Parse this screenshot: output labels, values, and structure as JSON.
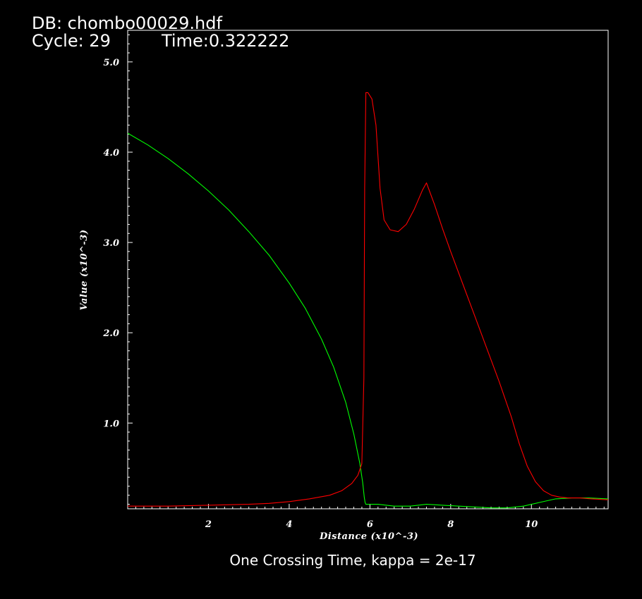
{
  "header": {
    "db_label": "DB: chombo00029.hdf",
    "cycle_label": "Cycle: 29",
    "time_label": "Time:0.322222"
  },
  "caption": "One Crossing Time, kappa = 2e-17",
  "chart_data": {
    "type": "line",
    "xlabel": "Distance (x10^-3)",
    "ylabel": "Value (x10^-3)",
    "xlim": [
      0,
      11.9
    ],
    "ylim": [
      0.05,
      5.35
    ],
    "x_ticks": [
      2,
      4,
      6,
      8,
      10
    ],
    "x_tick_labels": [
      "2",
      "4",
      "6",
      "8",
      "10"
    ],
    "y_ticks": [
      1.0,
      2.0,
      3.0,
      4.0,
      5.0
    ],
    "y_tick_labels": [
      "1.0",
      "2.0",
      "3.0",
      "4.0",
      "5.0"
    ],
    "grid": false,
    "legend": "none",
    "series": [
      {
        "color": "#00ff00",
        "x": [
          0,
          0.5,
          1,
          1.5,
          2,
          2.5,
          3,
          3.5,
          4,
          4.4,
          4.8,
          5.1,
          5.4,
          5.6,
          5.75,
          5.82,
          5.86,
          5.88,
          5.9,
          6.2,
          6.6,
          7,
          7.4,
          7.8,
          8.2,
          8.6,
          9,
          9.4,
          9.8,
          10.2,
          10.6,
          11,
          11.4,
          11.9
        ],
        "y": [
          4.21,
          4.08,
          3.93,
          3.76,
          3.57,
          3.36,
          3.12,
          2.86,
          2.55,
          2.27,
          1.93,
          1.62,
          1.23,
          0.88,
          0.55,
          0.34,
          0.18,
          0.12,
          0.1,
          0.1,
          0.08,
          0.08,
          0.1,
          0.09,
          0.08,
          0.07,
          0.06,
          0.06,
          0.08,
          0.12,
          0.16,
          0.17,
          0.17,
          0.16
        ]
      },
      {
        "color": "#ff0000",
        "x": [
          0,
          1,
          2,
          3,
          3.5,
          4,
          4.5,
          5,
          5.3,
          5.55,
          5.7,
          5.8,
          5.85,
          5.87,
          5.9,
          5.95,
          6.05,
          6.15,
          6.25,
          6.35,
          6.5,
          6.7,
          6.9,
          7.1,
          7.3,
          7.4,
          7.6,
          7.8,
          8,
          8.3,
          8.6,
          8.9,
          9.2,
          9.5,
          9.7,
          9.9,
          10.1,
          10.3,
          10.5,
          10.7,
          10.9,
          11.2,
          11.5,
          11.9
        ],
        "y": [
          0.08,
          0.08,
          0.09,
          0.1,
          0.11,
          0.13,
          0.16,
          0.2,
          0.25,
          0.33,
          0.42,
          0.55,
          1.5,
          3.6,
          4.66,
          4.66,
          4.59,
          4.3,
          3.6,
          3.25,
          3.14,
          3.12,
          3.2,
          3.37,
          3.58,
          3.66,
          3.42,
          3.15,
          2.9,
          2.54,
          2.18,
          1.82,
          1.46,
          1.07,
          0.77,
          0.52,
          0.35,
          0.25,
          0.2,
          0.18,
          0.17,
          0.17,
          0.16,
          0.15
        ]
      }
    ]
  }
}
